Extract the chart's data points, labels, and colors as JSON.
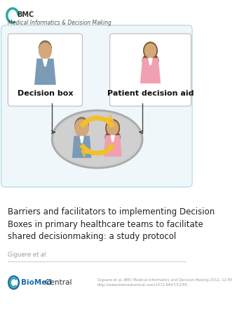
{
  "bg_color": "#ffffff",
  "border_color_outer": "#b8dde8",
  "border_color_box": "#bbbbbb",
  "title_text": "Barriers and facilitators to implementing Decision\nBoxes in primary healthcare teams to facilitate\nshared decisionmaking: a study protocol",
  "author_text": "Giguere et al.",
  "journal_line1": "BMC",
  "journal_line2": "Medical Informatics & Decision Making",
  "bmc_color": "#2aab9b",
  "biomed_blue": "#1a6aab",
  "biomed_green": "#2aab9b",
  "citation_text": "Giguere et al. BMC Medical Informatics and Decision Making 2012, 12:85\nhttp://www.biomedcentral.com/1472-6947/12/85",
  "box_left_label": "Decision box",
  "box_right_label": "Patient decision aid",
  "skin_color": "#d4a97a",
  "hair_color_brown": "#7a5230",
  "hair_color_doctor": "#8a7060",
  "doctor_body_color": "#7a9ab8",
  "patient_body_color": "#f0a0b0",
  "stethoscope_color": "#999999",
  "ellipse_fill": "#cccccc",
  "ellipse_edge": "#bbbbbb",
  "arrow_color": "#f0c030",
  "connector_color": "#444444",
  "title_fontsize": 8.5,
  "author_fontsize": 6.0,
  "journal_fontsize": 6.5,
  "label_fontsize": 8.0
}
